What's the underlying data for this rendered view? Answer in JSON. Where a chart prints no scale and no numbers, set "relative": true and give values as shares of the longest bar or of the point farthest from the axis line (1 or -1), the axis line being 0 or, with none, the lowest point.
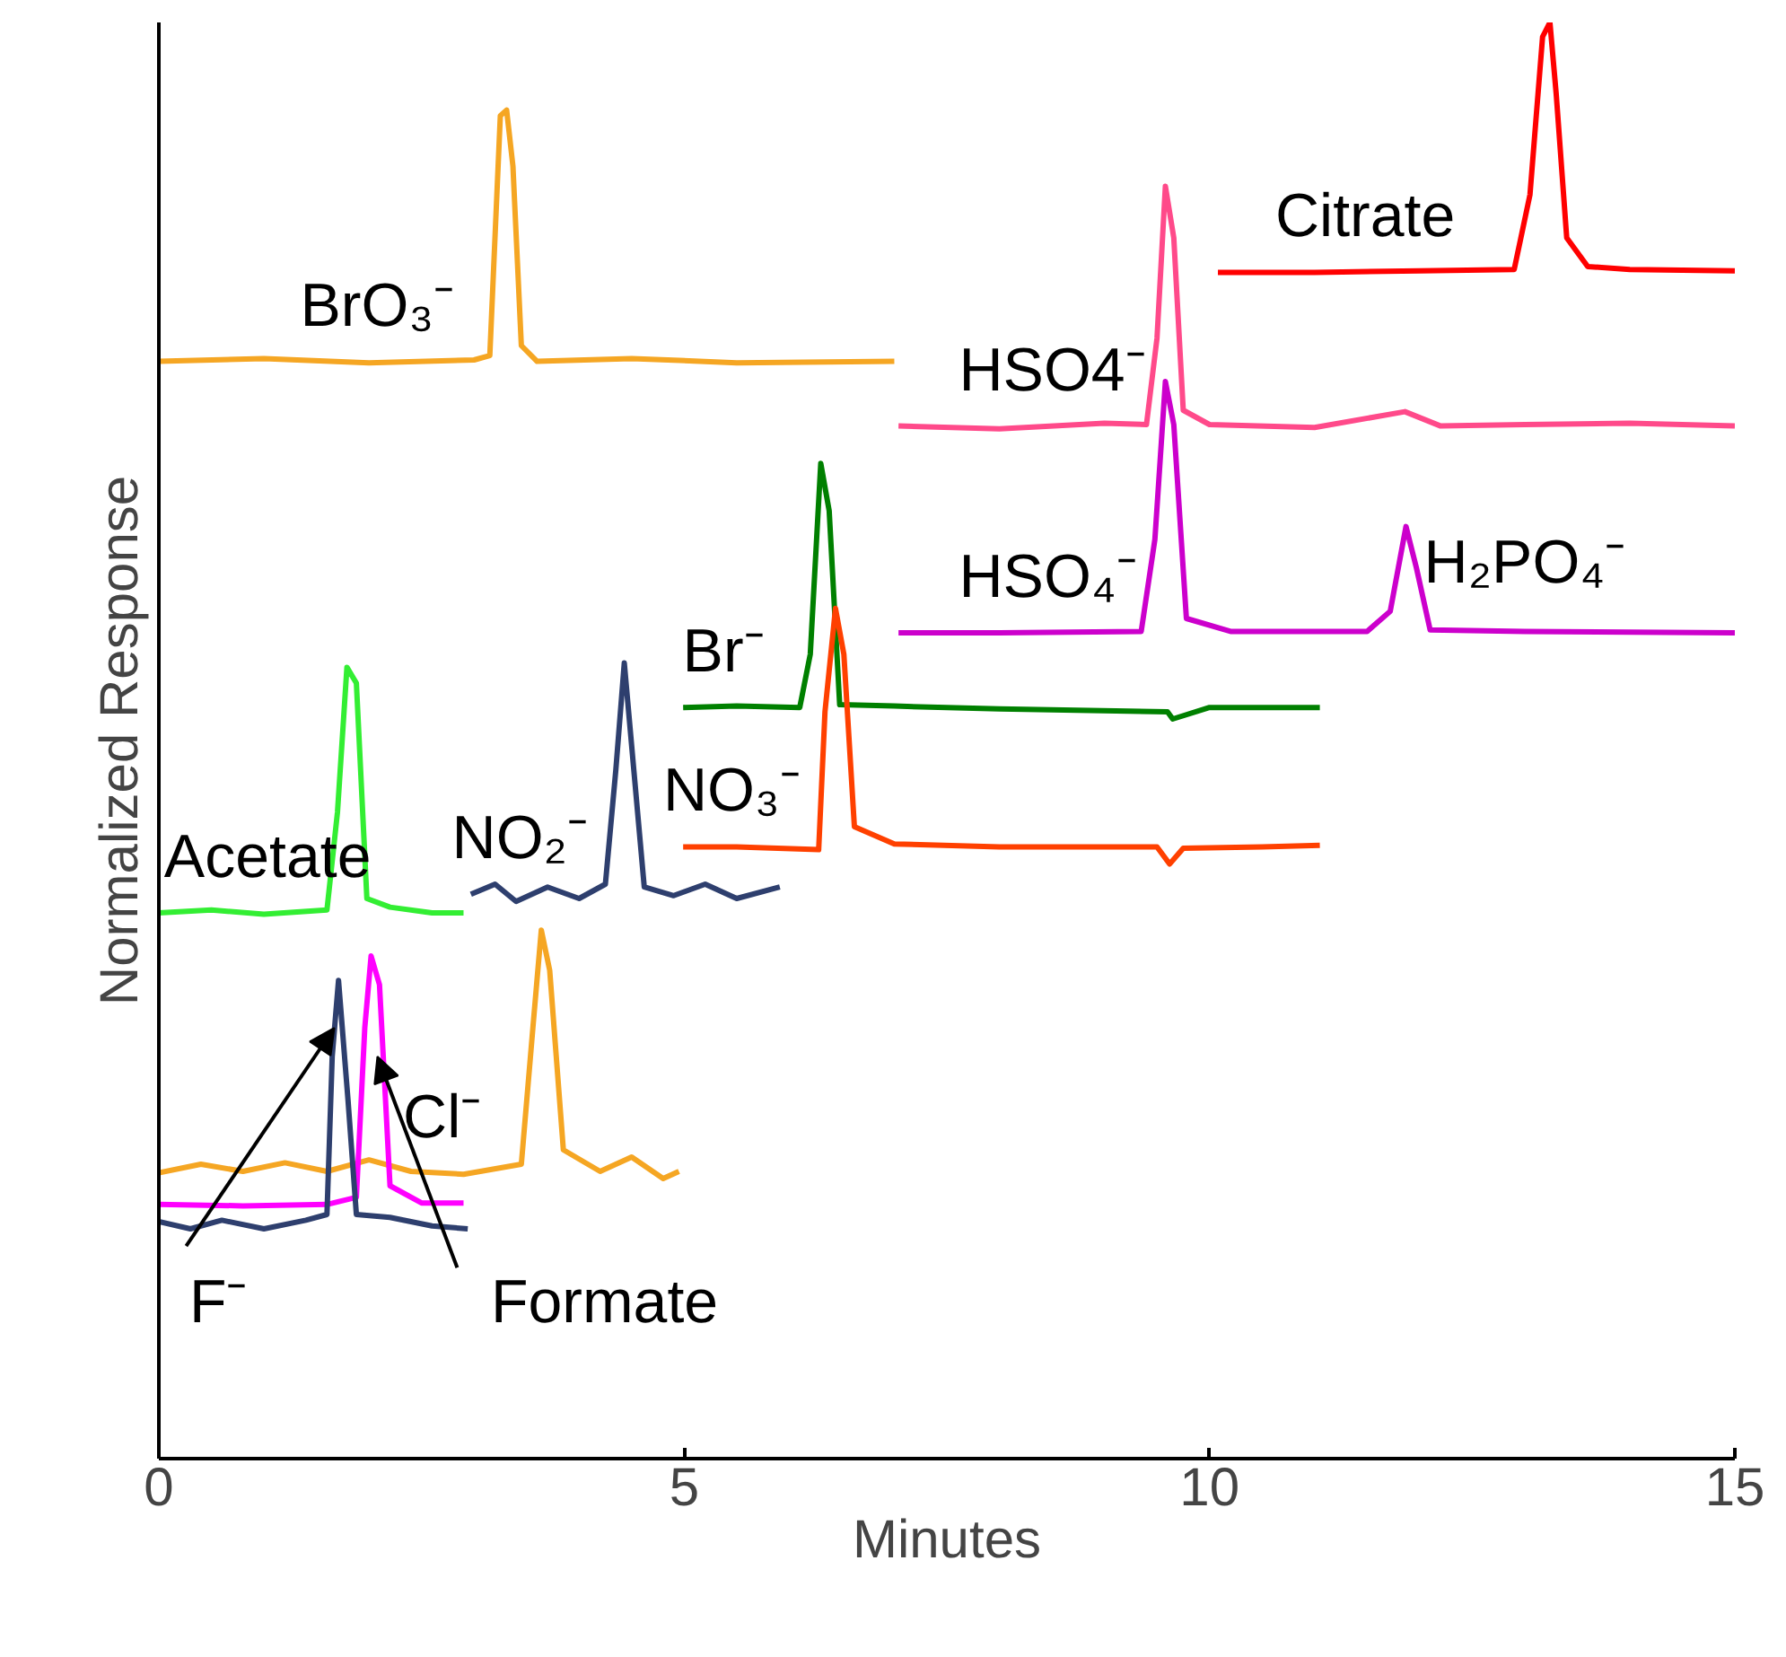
{
  "chart_data": {
    "type": "line",
    "relative": true,
    "xlabel": "Minutes",
    "ylabel": "Normalized Response",
    "xlim": [
      0,
      15
    ],
    "xticks": [
      0,
      5,
      10,
      15
    ],
    "grid": false,
    "marker": "none",
    "line_style": "solid",
    "series": [
      {
        "name": "BrO₃⁻",
        "color": "#f5a623",
        "x": [
          0,
          1,
          2,
          3.0,
          3.15,
          3.25,
          3.31,
          3.37,
          3.45,
          3.6,
          4.5,
          5.5,
          7.0
        ],
        "values": [
          0.764,
          0.766,
          0.763,
          0.765,
          0.768,
          0.935,
          0.939,
          0.9,
          0.775,
          0.764,
          0.766,
          0.763,
          0.764
        ]
      },
      {
        "name": "HSO4⁻",
        "color": "#ff4a8a",
        "x": [
          7.04,
          8,
          9,
          9.4,
          9.5,
          9.58,
          9.66,
          9.75,
          10,
          11,
          11.86,
          12.2,
          13,
          14,
          15
        ],
        "values": [
          0.719,
          0.717,
          0.721,
          0.72,
          0.78,
          0.886,
          0.85,
          0.73,
          0.72,
          0.718,
          0.729,
          0.719,
          0.72,
          0.721,
          0.719
        ]
      },
      {
        "name": "Citrate",
        "color": "#ff0000",
        "x": [
          10.08,
          11,
          12,
          12.9,
          13.05,
          13.17,
          13.24,
          13.3,
          13.4,
          13.6,
          14,
          15
        ],
        "values": [
          0.826,
          0.826,
          0.827,
          0.828,
          0.88,
          0.99,
          1.0,
          0.95,
          0.85,
          0.83,
          0.828,
          0.827
        ]
      },
      {
        "name": "HSO₄⁻",
        "color": "#cc00cc",
        "x": [
          7.04,
          8,
          9.35,
          9.48,
          9.58,
          9.66,
          9.78,
          10.2,
          11.5,
          11.72,
          11.87,
          11.97,
          12.1,
          13,
          15
        ],
        "values": [
          0.575,
          0.575,
          0.576,
          0.64,
          0.75,
          0.72,
          0.585,
          0.576,
          0.576,
          0.59,
          0.649,
          0.62,
          0.577,
          0.576,
          0.575
        ]
      },
      {
        "name": "Br⁻",
        "color": "#008000",
        "x": [
          4.99,
          5.5,
          6.1,
          6.2,
          6.3,
          6.38,
          6.48,
          7,
          8,
          9.6,
          9.65,
          10,
          11.05
        ],
        "values": [
          0.523,
          0.524,
          0.523,
          0.56,
          0.693,
          0.66,
          0.525,
          0.524,
          0.522,
          0.52,
          0.515,
          0.523,
          0.523
        ]
      },
      {
        "name": "NO₃⁻",
        "color": "#ff4000",
        "x": [
          4.99,
          5.5,
          6.28,
          6.34,
          6.44,
          6.52,
          6.62,
          7,
          8,
          9.5,
          9.62,
          9.75,
          10.5,
          11.05
        ],
        "values": [
          0.426,
          0.426,
          0.424,
          0.52,
          0.592,
          0.56,
          0.44,
          0.428,
          0.426,
          0.426,
          0.414,
          0.425,
          0.426,
          0.427
        ]
      },
      {
        "name": "Acetate",
        "color": "#33ee33",
        "x": [
          0,
          0.5,
          1.0,
          1.6,
          1.7,
          1.79,
          1.88,
          1.98,
          2.2,
          2.6,
          2.9
        ],
        "values": [
          0.38,
          0.382,
          0.379,
          0.382,
          0.45,
          0.551,
          0.54,
          0.39,
          0.384,
          0.38,
          0.38
        ]
      },
      {
        "name": "NO₂⁻",
        "color": "#2e3f6e",
        "x": [
          2.97,
          3.2,
          3.4,
          3.7,
          4.0,
          4.25,
          4.35,
          4.43,
          4.52,
          4.62,
          4.9,
          5.2,
          5.5,
          5.91
        ],
        "values": [
          0.393,
          0.4,
          0.388,
          0.398,
          0.39,
          0.4,
          0.48,
          0.554,
          0.48,
          0.398,
          0.392,
          0.4,
          0.39,
          0.398
        ]
      },
      {
        "name": "Cl⁻",
        "color": "#f5a623",
        "x": [
          0,
          0.4,
          0.8,
          1.2,
          1.6,
          2.0,
          2.4,
          2.9,
          3.45,
          3.56,
          3.64,
          3.72,
          3.85,
          4.2,
          4.5,
          4.8,
          4.95
        ],
        "values": [
          0.199,
          0.205,
          0.2,
          0.206,
          0.2,
          0.208,
          0.2,
          0.198,
          0.205,
          0.3,
          0.368,
          0.34,
          0.215,
          0.2,
          0.21,
          0.195,
          0.2
        ]
      },
      {
        "color": "#ff00ff",
        "x": [
          0,
          0.8,
          1.6,
          1.88,
          1.96,
          2.02,
          2.1,
          2.2,
          2.5,
          2.9
        ],
        "values": [
          0.177,
          0.176,
          0.177,
          0.182,
          0.3,
          0.35,
          0.33,
          0.19,
          0.178,
          0.178
        ]
      },
      {
        "color": "#2e3f6e",
        "x": [
          0,
          0.3,
          0.6,
          1.0,
          1.4,
          1.6,
          1.65,
          1.71,
          1.8,
          1.88,
          2.2,
          2.6,
          2.94
        ],
        "values": [
          0.165,
          0.16,
          0.166,
          0.16,
          0.166,
          0.17,
          0.28,
          0.333,
          0.25,
          0.17,
          0.168,
          0.162,
          0.16
        ]
      }
    ],
    "annotations": [
      {
        "text": "H₂PO₄⁻",
        "x": 11.87,
        "y": 0.649
      },
      {
        "text": "F⁻",
        "x": 1.67,
        "y": 0.3
      },
      {
        "text": "Formate",
        "x": 2.08,
        "y": 0.28
      }
    ]
  }
}
